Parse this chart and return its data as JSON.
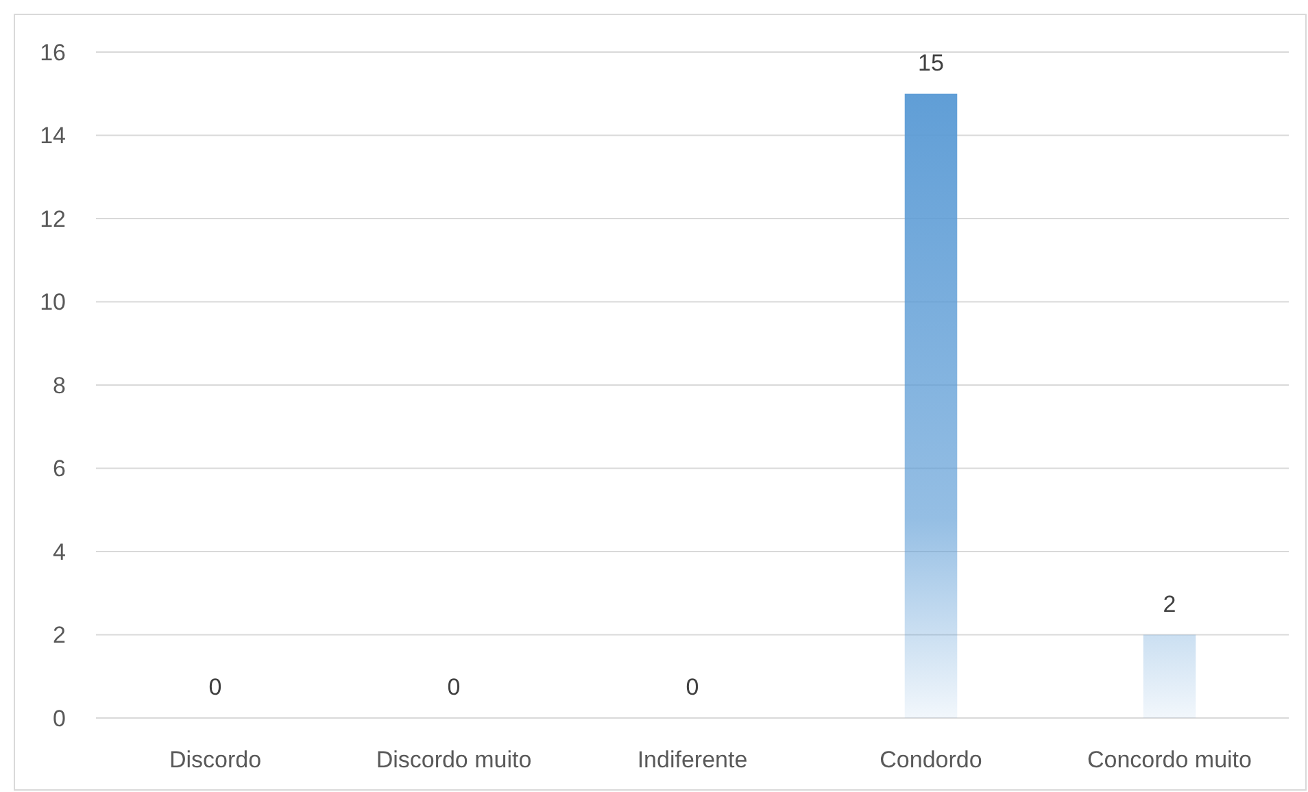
{
  "chart_data": {
    "type": "bar",
    "categories": [
      "Discordo",
      "Discordo muito",
      "Indiferente",
      "Condordo",
      "Concordo muito"
    ],
    "values": [
      0,
      0,
      0,
      15,
      2
    ],
    "color": "#5b9bd5",
    "ylim": [
      0,
      16
    ],
    "yticks": [
      0,
      2,
      4,
      6,
      8,
      10,
      12,
      14,
      16
    ],
    "grid": "y",
    "data_labels": true
  }
}
